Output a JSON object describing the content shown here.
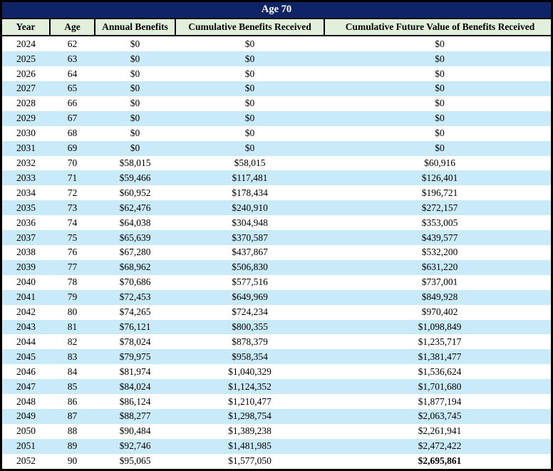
{
  "title": "Age 70",
  "columns": [
    "Year",
    "Age",
    "Annual Benefits",
    "Cumulative Benefits Received",
    "Cumulative Future Value of Benefits Received"
  ],
  "rows": [
    [
      "2024",
      "62",
      "$0",
      "$0",
      "$0"
    ],
    [
      "2025",
      "63",
      "$0",
      "$0",
      "$0"
    ],
    [
      "2026",
      "64",
      "$0",
      "$0",
      "$0"
    ],
    [
      "2027",
      "65",
      "$0",
      "$0",
      "$0"
    ],
    [
      "2028",
      "66",
      "$0",
      "$0",
      "$0"
    ],
    [
      "2029",
      "67",
      "$0",
      "$0",
      "$0"
    ],
    [
      "2030",
      "68",
      "$0",
      "$0",
      "$0"
    ],
    [
      "2031",
      "69",
      "$0",
      "$0",
      "$0"
    ],
    [
      "2032",
      "70",
      "$58,015",
      "$58,015",
      "$60,916"
    ],
    [
      "2033",
      "71",
      "$59,466",
      "$117,481",
      "$126,401"
    ],
    [
      "2034",
      "72",
      "$60,952",
      "$178,434",
      "$196,721"
    ],
    [
      "2035",
      "73",
      "$62,476",
      "$240,910",
      "$272,157"
    ],
    [
      "2036",
      "74",
      "$64,038",
      "$304,948",
      "$353,005"
    ],
    [
      "2037",
      "75",
      "$65,639",
      "$370,587",
      "$439,577"
    ],
    [
      "2038",
      "76",
      "$67,280",
      "$437,867",
      "$532,200"
    ],
    [
      "2039",
      "77",
      "$68,962",
      "$506,830",
      "$631,220"
    ],
    [
      "2040",
      "78",
      "$70,686",
      "$577,516",
      "$737,001"
    ],
    [
      "2041",
      "79",
      "$72,453",
      "$649,969",
      "$849,928"
    ],
    [
      "2042",
      "80",
      "$74,265",
      "$724,234",
      "$970,402"
    ],
    [
      "2043",
      "81",
      "$76,121",
      "$800,355",
      "$1,098,849"
    ],
    [
      "2044",
      "82",
      "$78,024",
      "$878,379",
      "$1,235,717"
    ],
    [
      "2045",
      "83",
      "$79,975",
      "$958,354",
      "$1,381,477"
    ],
    [
      "2046",
      "84",
      "$81,974",
      "$1,040,329",
      "$1,536,624"
    ],
    [
      "2047",
      "85",
      "$84,024",
      "$1,124,352",
      "$1,701,680"
    ],
    [
      "2048",
      "86",
      "$86,124",
      "$1,210,477",
      "$1,877,194"
    ],
    [
      "2049",
      "87",
      "$88,277",
      "$1,298,754",
      "$2,063,745"
    ],
    [
      "2050",
      "88",
      "$90,484",
      "$1,389,238",
      "$2,261,941"
    ],
    [
      "2051",
      "89",
      "$92,746",
      "$1,481,985",
      "$2,472,422"
    ],
    [
      "2052",
      "90",
      "$95,065",
      "$1,577,050",
      "$2,695,861"
    ]
  ],
  "grand_total_cell": "$2,695,861",
  "colors": {
    "title_bg": "#0e2466",
    "title_text": "#ffffff",
    "header_bg": "#e2efda",
    "row_bg": "#ffffff",
    "row_alt_bg": "#c9eaf9",
    "border_color": "#000000",
    "text_color": "#000000"
  }
}
